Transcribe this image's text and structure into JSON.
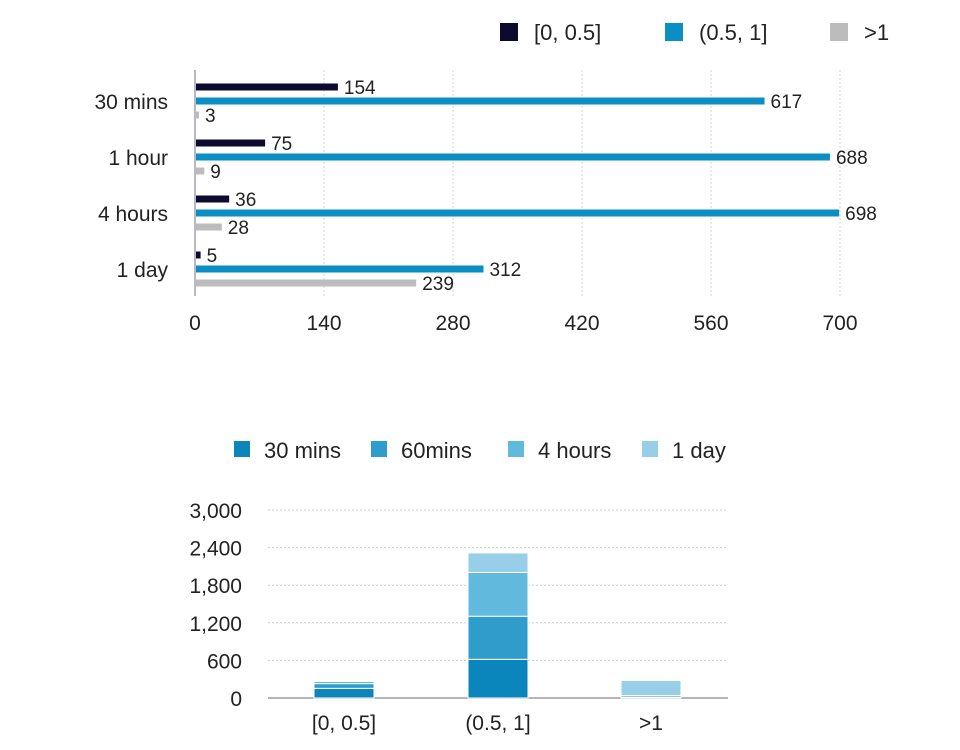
{
  "chart_data": [
    {
      "type": "bar",
      "orientation": "horizontal",
      "categories": [
        "30 mins",
        "1 hour",
        "4 hours",
        "1 day"
      ],
      "series": [
        {
          "name": "[0, 0.5]",
          "values": [
            154,
            75,
            36,
            5
          ],
          "color": "#0c0a2e"
        },
        {
          "name": "(0.5, 1]",
          "values": [
            617,
            688,
            698,
            312
          ],
          "color": "#0a8ec4"
        },
        {
          "name": ">1",
          "values": [
            3,
            9,
            28,
            239
          ],
          "color": "#bcbcbc"
        }
      ],
      "xticks": [
        "0",
        "140",
        "280",
        "420",
        "560",
        "700"
      ],
      "xlim": [
        0,
        700
      ],
      "grid": true,
      "legend_position": "top-right",
      "data_labels": true
    },
    {
      "type": "bar",
      "stacked": true,
      "categories": [
        "[0, 0.5]",
        "(0.5, 1]",
        ">1"
      ],
      "series": [
        {
          "name": "30 mins",
          "values": [
            154,
            617,
            3
          ],
          "color": "#0a86bd"
        },
        {
          "name": "60mins",
          "values": [
            75,
            688,
            9
          ],
          "color": "#2e9dcc"
        },
        {
          "name": "4 hours",
          "values": [
            36,
            698,
            28
          ],
          "color": "#61b9dd"
        },
        {
          "name": "1 day",
          "values": [
            5,
            312,
            239
          ],
          "color": "#96cfe7"
        }
      ],
      "yticks": [
        "0",
        "600",
        "1,200",
        "1,800",
        "2,400",
        "3,000"
      ],
      "ylim": [
        0,
        3000
      ],
      "grid": true,
      "legend_position": "top"
    }
  ]
}
